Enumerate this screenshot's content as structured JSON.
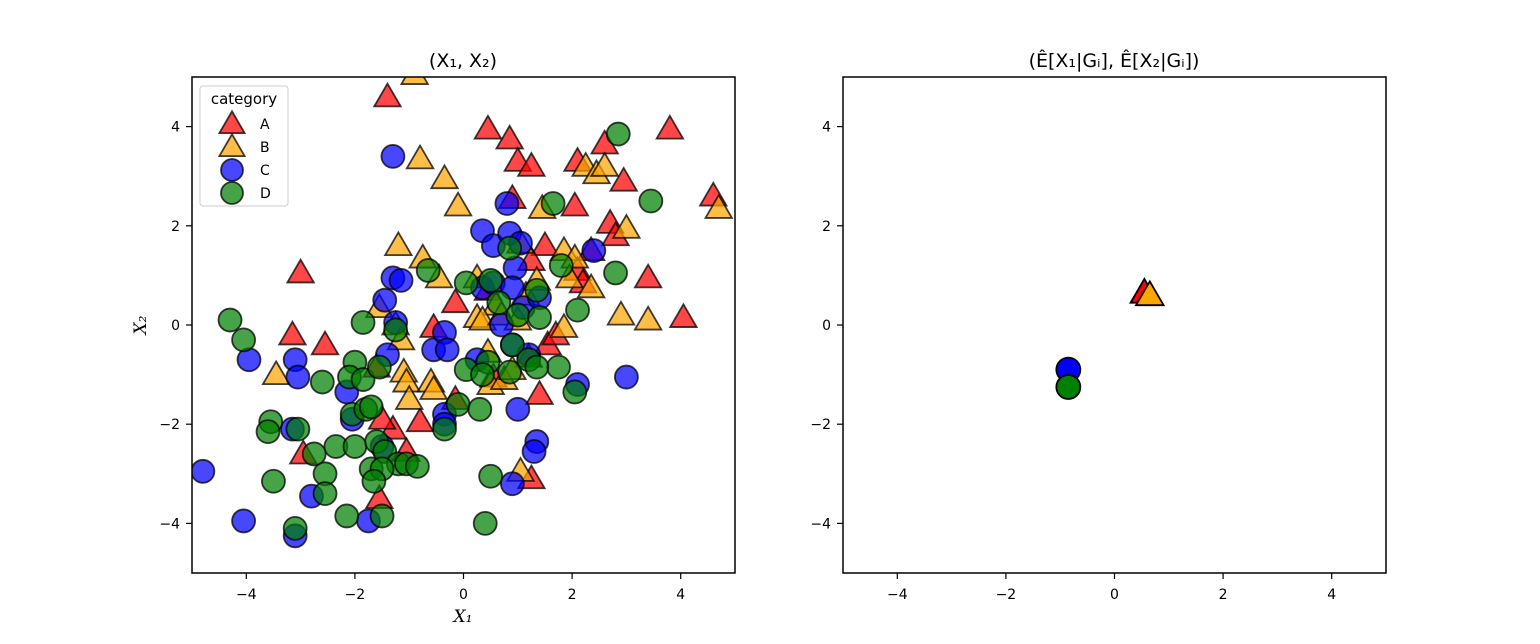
{
  "chart_data": [
    {
      "type": "scatter",
      "title": "(X₁, X₂)",
      "xlabel": "X₁",
      "ylabel": "X₂",
      "xlim": [
        -5,
        5
      ],
      "ylim": [
        -5,
        5
      ],
      "xticks": [
        -4,
        -2,
        0,
        2,
        4
      ],
      "yticks": [
        -4,
        -2,
        0,
        2,
        4
      ],
      "grid": false,
      "legend": {
        "title": "category",
        "placement": "top-left"
      },
      "series": [
        {
          "name": "A",
          "marker": "triangle",
          "color": "#ff0000",
          "alpha": 0.72,
          "points": [
            [
              -1.4,
              4.6
            ],
            [
              0.45,
              3.95
            ],
            [
              0.85,
              3.75
            ],
            [
              1.0,
              3.3
            ],
            [
              1.25,
              3.2
            ],
            [
              3.8,
              3.95
            ],
            [
              2.6,
              3.65
            ],
            [
              2.1,
              3.3
            ],
            [
              2.95,
              2.9
            ],
            [
              0.9,
              2.55
            ],
            [
              2.05,
              2.4
            ],
            [
              2.7,
              2.05
            ],
            [
              2.8,
              1.8
            ],
            [
              4.6,
              2.6
            ],
            [
              1.5,
              1.6
            ],
            [
              2.35,
              1.5
            ],
            [
              1.25,
              1.3
            ],
            [
              2.1,
              1.1
            ],
            [
              3.4,
              0.95
            ],
            [
              4.05,
              0.15
            ],
            [
              -3.0,
              1.05
            ],
            [
              -0.15,
              0.45
            ],
            [
              0.45,
              0.7
            ],
            [
              -3.15,
              -0.2
            ],
            [
              -2.55,
              -0.4
            ],
            [
              -0.55,
              -0.05
            ],
            [
              1.55,
              -0.4
            ],
            [
              1.2,
              -0.65
            ],
            [
              -0.8,
              -1.95
            ],
            [
              -1.3,
              -2.1
            ],
            [
              -1.5,
              -1.9
            ],
            [
              -2.95,
              -2.6
            ],
            [
              -1.05,
              -2.55
            ],
            [
              -1.55,
              -3.5
            ],
            [
              1.25,
              -3.1
            ],
            [
              -0.15,
              -1.5
            ],
            [
              1.4,
              -1.4
            ],
            [
              1.7,
              -0.2
            ],
            [
              -1.6,
              -0.85
            ],
            [
              0.55,
              -1.05
            ],
            [
              2.2,
              0.85
            ]
          ]
        },
        {
          "name": "B",
          "marker": "triangle",
          "color": "#ffa500",
          "alpha": 0.72,
          "points": [
            [
              -0.9,
              5.05
            ],
            [
              -0.8,
              3.35
            ],
            [
              -0.35,
              2.95
            ],
            [
              -0.1,
              2.4
            ],
            [
              1.45,
              2.35
            ],
            [
              2.25,
              3.2
            ],
            [
              2.45,
              3.05
            ],
            [
              2.6,
              3.2
            ],
            [
              4.7,
              2.35
            ],
            [
              3.0,
              1.95
            ],
            [
              -1.2,
              1.6
            ],
            [
              -0.75,
              1.35
            ],
            [
              0.25,
              0.95
            ],
            [
              -0.45,
              0.95
            ],
            [
              1.05,
              1.65
            ],
            [
              1.85,
              1.5
            ],
            [
              2.05,
              1.35
            ],
            [
              1.95,
              0.95
            ],
            [
              2.35,
              0.75
            ],
            [
              0.6,
              0.4
            ],
            [
              1.15,
              0.6
            ],
            [
              1.35,
              0.9
            ],
            [
              -1.55,
              0.35
            ],
            [
              -1.25,
              0.0
            ],
            [
              -1.15,
              -0.3
            ],
            [
              0.25,
              0.15
            ],
            [
              0.35,
              0.1
            ],
            [
              0.7,
              0.2
            ],
            [
              1.0,
              0.1
            ],
            [
              1.85,
              -0.05
            ],
            [
              2.9,
              0.2
            ],
            [
              3.4,
              0.1
            ],
            [
              -3.45,
              -1.0
            ],
            [
              -1.1,
              -0.95
            ],
            [
              -1.05,
              -1.15
            ],
            [
              -0.6,
              -1.15
            ],
            [
              -0.55,
              -1.3
            ],
            [
              -1.0,
              -1.5
            ],
            [
              0.5,
              -1.2
            ],
            [
              0.75,
              -1.1
            ],
            [
              1.05,
              -2.95
            ],
            [
              0.9,
              -0.9
            ],
            [
              0.45,
              -0.55
            ]
          ]
        },
        {
          "name": "C",
          "marker": "circle",
          "color": "#0000ff",
          "alpha": 0.72,
          "points": [
            [
              -1.3,
              3.4
            ],
            [
              0.8,
              2.45
            ],
            [
              0.35,
              1.9
            ],
            [
              0.55,
              1.6
            ],
            [
              0.85,
              1.85
            ],
            [
              1.05,
              1.65
            ],
            [
              2.4,
              1.5
            ],
            [
              -1.3,
              0.95
            ],
            [
              -1.15,
              0.9
            ],
            [
              0.95,
              1.15
            ],
            [
              -1.45,
              0.5
            ],
            [
              0.35,
              0.75
            ],
            [
              0.55,
              0.85
            ],
            [
              0.9,
              0.75
            ],
            [
              -1.25,
              0.05
            ],
            [
              -0.55,
              -0.5
            ],
            [
              -0.35,
              -0.15
            ],
            [
              -0.3,
              -0.5
            ],
            [
              0.9,
              -0.4
            ],
            [
              1.2,
              -0.6
            ],
            [
              -1.4,
              -0.6
            ],
            [
              -3.1,
              -0.7
            ],
            [
              -3.95,
              -0.7
            ],
            [
              -3.05,
              -1.05
            ],
            [
              -2.05,
              -1.9
            ],
            [
              -0.35,
              -1.8
            ],
            [
              -0.35,
              -2.0
            ],
            [
              1.0,
              -1.7
            ],
            [
              -1.5,
              -2.45
            ],
            [
              -3.15,
              -2.1
            ],
            [
              1.35,
              -2.35
            ],
            [
              1.3,
              -2.55
            ],
            [
              0.9,
              -3.2
            ],
            [
              -4.8,
              -2.95
            ],
            [
              -4.05,
              -3.95
            ],
            [
              -1.75,
              -3.95
            ],
            [
              -3.1,
              -4.25
            ],
            [
              2.1,
              -1.2
            ],
            [
              3.0,
              -1.05
            ],
            [
              0.25,
              -0.7
            ],
            [
              -2.8,
              -3.45
            ],
            [
              -2.15,
              -1.35
            ],
            [
              1.1,
              0.35
            ],
            [
              0.7,
              0.0
            ],
            [
              1.4,
              0.55
            ]
          ]
        },
        {
          "name": "D",
          "marker": "circle",
          "color": "#008000",
          "alpha": 0.72,
          "points": [
            [
              2.85,
              3.85
            ],
            [
              3.45,
              2.5
            ],
            [
              1.65,
              2.45
            ],
            [
              0.85,
              1.55
            ],
            [
              1.8,
              1.2
            ],
            [
              2.8,
              1.05
            ],
            [
              -0.65,
              1.1
            ],
            [
              0.05,
              0.85
            ],
            [
              0.5,
              0.9
            ],
            [
              1.35,
              0.7
            ],
            [
              2.1,
              0.3
            ],
            [
              -4.3,
              0.1
            ],
            [
              -4.05,
              -0.3
            ],
            [
              -1.85,
              0.05
            ],
            [
              -1.25,
              -0.1
            ],
            [
              0.65,
              0.45
            ],
            [
              1.0,
              0.2
            ],
            [
              1.4,
              0.15
            ],
            [
              -2.0,
              -0.75
            ],
            [
              -2.6,
              -1.15
            ],
            [
              -2.1,
              -1.05
            ],
            [
              -1.85,
              -1.1
            ],
            [
              -1.55,
              -0.85
            ],
            [
              0.05,
              -0.9
            ],
            [
              0.45,
              -0.75
            ],
            [
              0.85,
              -0.95
            ],
            [
              0.9,
              -0.4
            ],
            [
              1.2,
              -0.7
            ],
            [
              1.75,
              -0.85
            ],
            [
              0.35,
              -1.0
            ],
            [
              -2.05,
              -1.8
            ],
            [
              -1.8,
              -1.7
            ],
            [
              -1.7,
              -1.65
            ],
            [
              -3.55,
              -1.95
            ],
            [
              -3.6,
              -2.15
            ],
            [
              -3.05,
              -2.1
            ],
            [
              -2.35,
              -2.45
            ],
            [
              -2.0,
              -2.45
            ],
            [
              -1.6,
              -2.35
            ],
            [
              -0.35,
              -2.1
            ],
            [
              -0.1,
              -1.6
            ],
            [
              0.3,
              -1.7
            ],
            [
              -2.75,
              -2.6
            ],
            [
              -1.45,
              -2.55
            ],
            [
              -2.55,
              -3.0
            ],
            [
              -1.2,
              -2.8
            ],
            [
              -1.05,
              -2.8
            ],
            [
              -1.7,
              -2.9
            ],
            [
              -1.5,
              -2.9
            ],
            [
              -0.85,
              -2.85
            ],
            [
              -1.65,
              -3.15
            ],
            [
              -3.5,
              -3.15
            ],
            [
              -2.55,
              -3.4
            ],
            [
              -2.15,
              -3.85
            ],
            [
              -1.5,
              -3.85
            ],
            [
              -3.1,
              -4.1
            ],
            [
              0.5,
              -3.05
            ],
            [
              0.4,
              -4.0
            ],
            [
              2.05,
              -1.35
            ],
            [
              1.35,
              -0.85
            ]
          ]
        }
      ]
    },
    {
      "type": "scatter",
      "title": "(Ê[X₁|Gᵢ], Ê[X₂|Gᵢ])",
      "xlabel": "",
      "ylabel": "",
      "xlim": [
        -5,
        5
      ],
      "ylim": [
        -5,
        5
      ],
      "xticks": [
        -4,
        -2,
        0,
        2,
        4
      ],
      "yticks": [
        -4,
        -2,
        0,
        2,
        4
      ],
      "grid": false,
      "series": [
        {
          "name": "A",
          "marker": "triangle",
          "color": "#ff0000",
          "alpha": 1,
          "points": [
            [
              0.55,
              0.65
            ]
          ]
        },
        {
          "name": "B",
          "marker": "triangle",
          "color": "#ffa500",
          "alpha": 1,
          "points": [
            [
              0.65,
              0.6
            ]
          ]
        },
        {
          "name": "C",
          "marker": "circle",
          "color": "#0000ff",
          "alpha": 1,
          "points": [
            [
              -0.85,
              -0.9
            ]
          ]
        },
        {
          "name": "D",
          "marker": "circle",
          "color": "#008000",
          "alpha": 1,
          "points": [
            [
              -0.85,
              -1.25
            ]
          ]
        }
      ]
    }
  ]
}
